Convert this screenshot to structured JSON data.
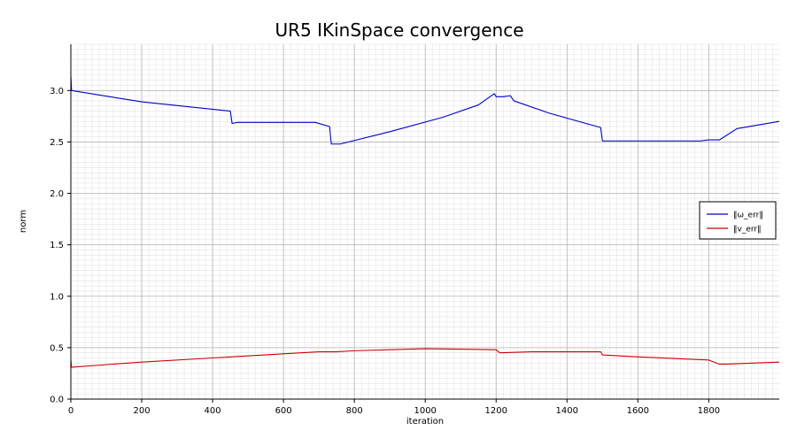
{
  "chart_data": {
    "type": "line",
    "title": "UR5 IKinSpace convergence",
    "xlabel": "iteration",
    "ylabel": "norm",
    "xlim": [
      0,
      1999
    ],
    "ylim": [
      0,
      3.45
    ],
    "x_ticks": [
      0,
      200,
      400,
      600,
      800,
      1000,
      1200,
      1400,
      1600,
      1800
    ],
    "x_tick_labels": [
      "0",
      "200",
      "400",
      "600",
      "800",
      "1000",
      "1200",
      "1400",
      "1600",
      "1800"
    ],
    "y_ticks": [
      0.0,
      0.5,
      1.0,
      1.5,
      2.0,
      2.5,
      3.0
    ],
    "y_tick_labels": [
      "0.0",
      "0.5",
      "1.0",
      "1.5",
      "2.0",
      "2.5",
      "3.0"
    ],
    "grid": true,
    "minor_grid": true,
    "legend_position": "right",
    "series": [
      {
        "name": "‖ω_err‖",
        "color": "#0000cc",
        "points": [
          [
            0,
            3.14
          ],
          [
            2,
            3.0
          ],
          [
            200,
            2.89
          ],
          [
            450,
            2.8
          ],
          [
            455,
            2.68
          ],
          [
            470,
            2.69
          ],
          [
            660,
            2.69
          ],
          [
            690,
            2.69
          ],
          [
            730,
            2.65
          ],
          [
            735,
            2.48
          ],
          [
            760,
            2.48
          ],
          [
            900,
            2.6
          ],
          [
            1050,
            2.74
          ],
          [
            1150,
            2.86
          ],
          [
            1195,
            2.97
          ],
          [
            1200,
            2.94
          ],
          [
            1220,
            2.94
          ],
          [
            1240,
            2.95
          ],
          [
            1250,
            2.9
          ],
          [
            1350,
            2.78
          ],
          [
            1495,
            2.64
          ],
          [
            1500,
            2.51
          ],
          [
            1775,
            2.51
          ],
          [
            1800,
            2.52
          ],
          [
            1830,
            2.52
          ],
          [
            1880,
            2.63
          ],
          [
            1999,
            2.7
          ]
        ]
      },
      {
        "name": "‖v_err‖",
        "color": "#cc0000",
        "points": [
          [
            0,
            0.38
          ],
          [
            2,
            0.31
          ],
          [
            200,
            0.36
          ],
          [
            400,
            0.4
          ],
          [
            600,
            0.44
          ],
          [
            700,
            0.46
          ],
          [
            750,
            0.46
          ],
          [
            800,
            0.47
          ],
          [
            1000,
            0.49
          ],
          [
            1200,
            0.48
          ],
          [
            1210,
            0.45
          ],
          [
            1300,
            0.46
          ],
          [
            1400,
            0.46
          ],
          [
            1495,
            0.46
          ],
          [
            1500,
            0.43
          ],
          [
            1600,
            0.41
          ],
          [
            1800,
            0.38
          ],
          [
            1830,
            0.34
          ],
          [
            1850,
            0.34
          ],
          [
            1999,
            0.36
          ]
        ]
      }
    ]
  }
}
